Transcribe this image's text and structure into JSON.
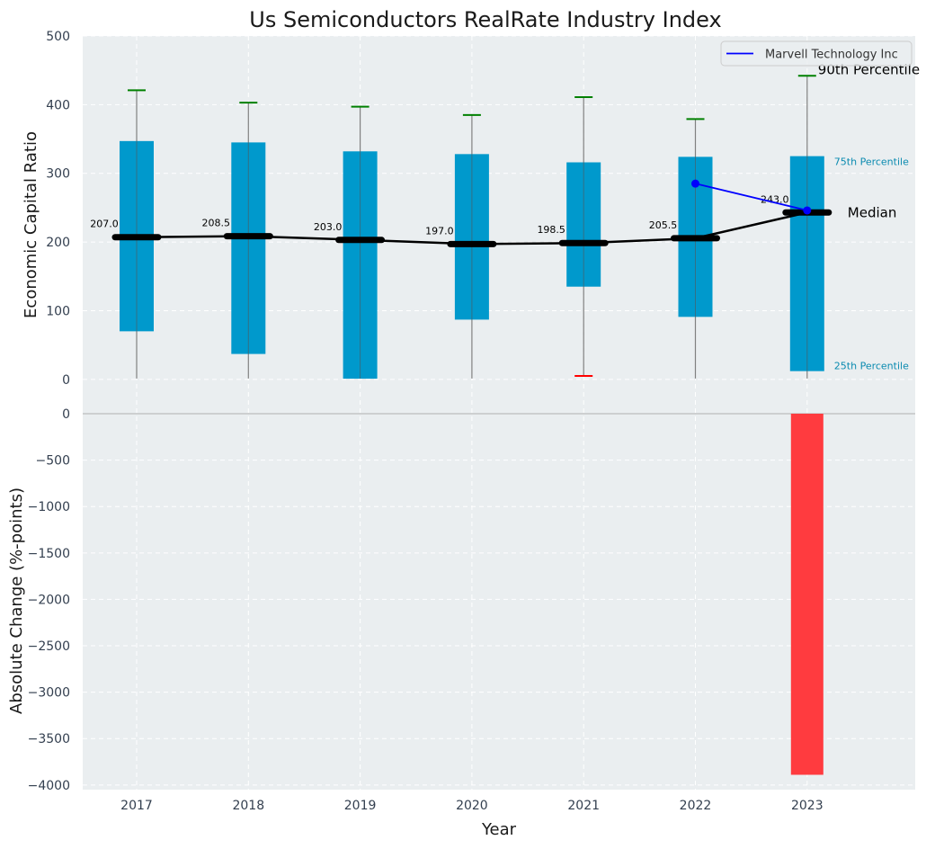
{
  "colors": {
    "background": "#eaeef0",
    "grid": "#ffffff",
    "box": "#0099cc",
    "whisker": "#808080",
    "cap_top": "#008000",
    "cap_bottom": "#ff0000",
    "median_line": "#000000",
    "company": "#0000ff",
    "change_bar": "#ff3b3f",
    "tick_text": "#333f4f",
    "annotation_text": "#0b8bb0"
  },
  "chart_data": [
    {
      "type": "box",
      "title": "Us Semiconductors RealRate Industry Index",
      "xlabel": "",
      "ylabel": "Economic Capital Ratio",
      "categories": [
        "2017",
        "2018",
        "2019",
        "2020",
        "2021",
        "2022",
        "2023"
      ],
      "ylim": [
        -50,
        500
      ],
      "yticks": [
        0,
        100,
        200,
        300,
        400,
        500
      ],
      "grid": true,
      "boxes": [
        {
          "year": "2017",
          "p10": 0,
          "q1": 70,
          "median": 207,
          "q3": 347,
          "p90": 421
        },
        {
          "year": "2018",
          "p10": 0,
          "q1": 37,
          "median": 208.5,
          "q3": 345,
          "p90": 403
        },
        {
          "year": "2019",
          "p10": 0,
          "q1": 1,
          "median": 203,
          "q3": 332,
          "p90": 397
        },
        {
          "year": "2020",
          "p10": 0,
          "q1": 87,
          "median": 197,
          "q3": 328,
          "p90": 385
        },
        {
          "year": "2021",
          "p10": 5,
          "q1": 135,
          "median": 198.5,
          "q3": 316,
          "p90": 411
        },
        {
          "year": "2022",
          "p10": 0,
          "q1": 91,
          "median": 205.5,
          "q3": 324,
          "p90": 379
        },
        {
          "year": "2023",
          "p10": 0,
          "q1": 12,
          "median": 243,
          "q3": 325,
          "p90": 442
        }
      ],
      "median_labels": [
        "207.0",
        "208.5",
        "203.0",
        "197.0",
        "198.5",
        "205.5",
        "243.0"
      ],
      "series": [
        {
          "name": "Marvell Technology Inc",
          "x": [
            "2022",
            "2023"
          ],
          "values": [
            285,
            246
          ]
        }
      ],
      "legend": {
        "placement": "top-right",
        "entries": [
          "Marvell Technology Inc"
        ]
      },
      "annotations": {
        "p90": "90th Percentile",
        "q3": "75th Percentile",
        "median": "Median",
        "q1": "25th Percentile"
      }
    },
    {
      "type": "bar",
      "xlabel": "Year",
      "ylabel": "Absolute Change (%-points)",
      "categories": [
        "2017",
        "2018",
        "2019",
        "2020",
        "2021",
        "2022",
        "2023"
      ],
      "values": [
        0,
        0,
        0,
        0,
        0,
        0,
        -3890
      ],
      "ylim": [
        -4050,
        0
      ],
      "yticks": [
        0,
        -500,
        -1000,
        -1500,
        -2000,
        -2500,
        -3000,
        -3500,
        -4000
      ],
      "grid": true
    }
  ]
}
